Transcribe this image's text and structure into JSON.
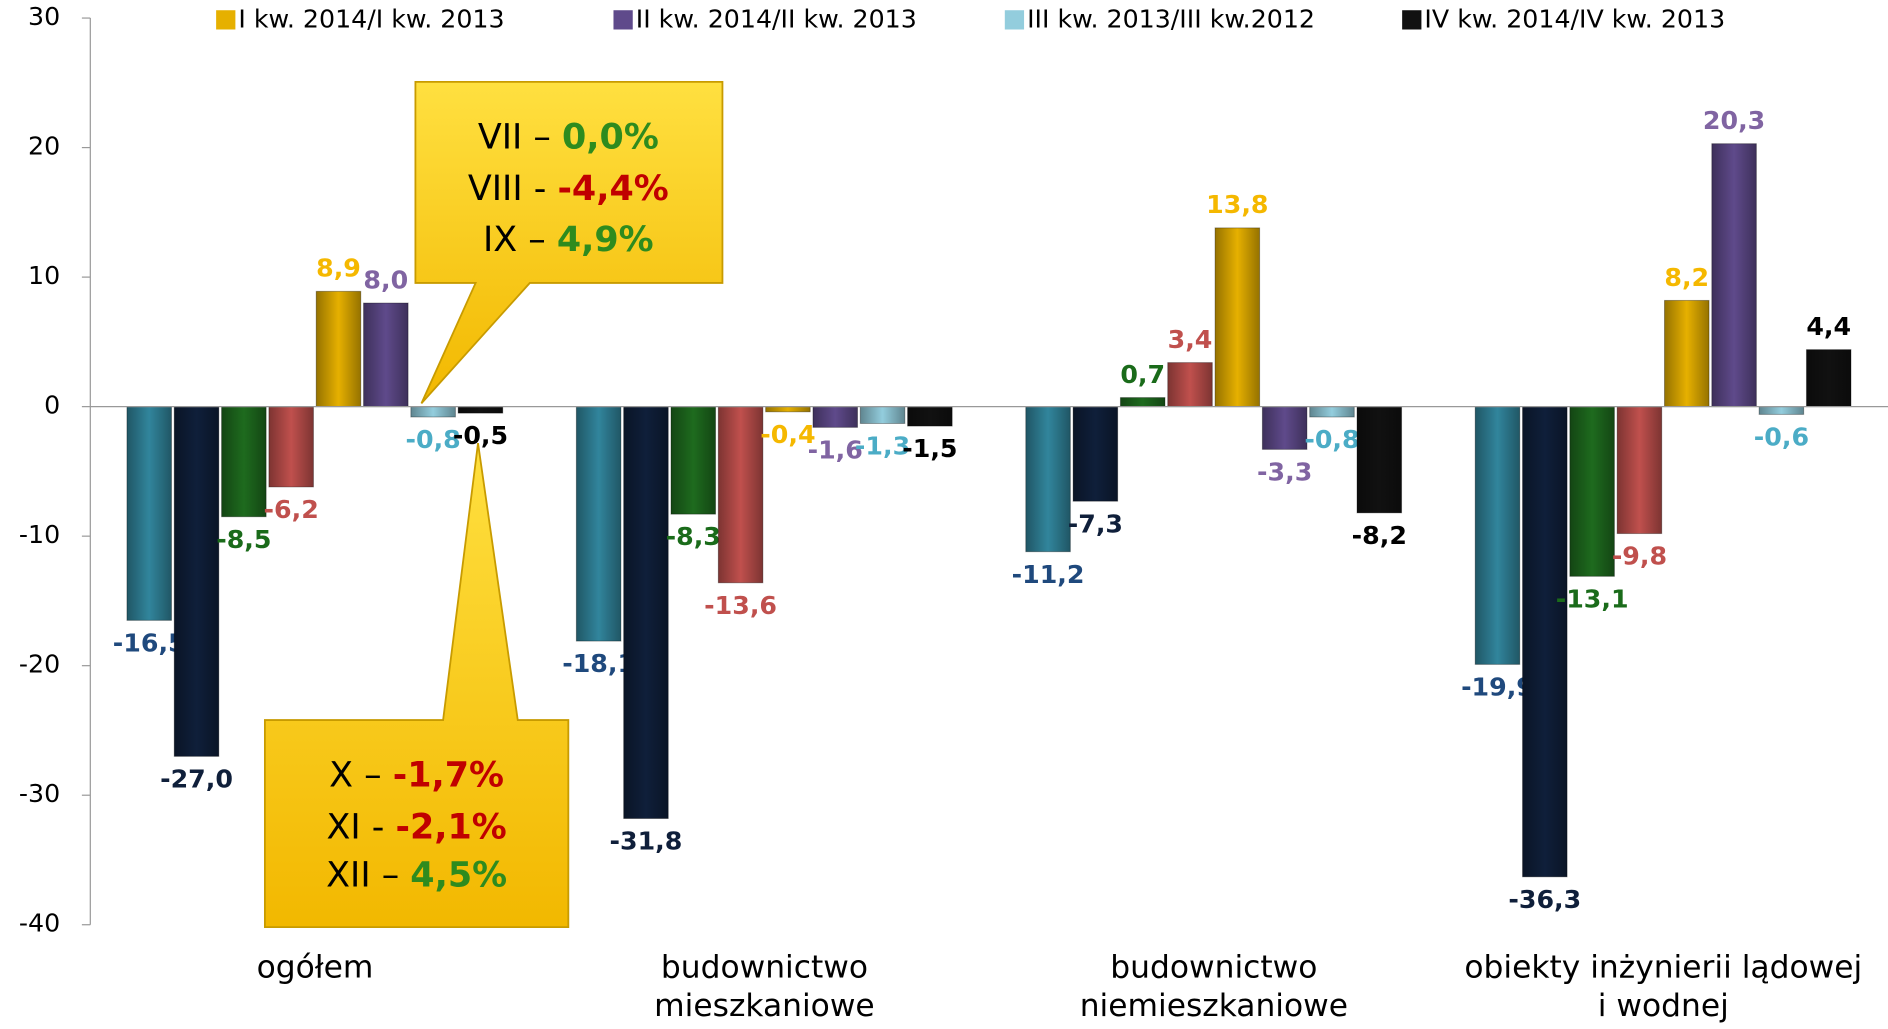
{
  "chart_data": {
    "type": "bar",
    "categories": [
      "ogółem",
      "budownictwo\nmieszkaniowe",
      "budownictwo\nniemieszkaniowe",
      "obiekty inżynierii lądowej\ni wodnej"
    ],
    "series": [
      {
        "color": "#31859c",
        "label_color": "#1f497d",
        "values": [
          -16.5,
          -18.1,
          -11.2,
          -19.9
        ],
        "value_labels": [
          "-16,5",
          "-18,1",
          "-11,2",
          "-19,9"
        ]
      },
      {
        "color": "#0f1f3a",
        "label_color": "#0f1f3a",
        "values": [
          -27.0,
          -31.8,
          -7.3,
          -36.3
        ],
        "value_labels": [
          "-27,0",
          "-31,8",
          "-7,3",
          "-36,3"
        ]
      },
      {
        "color": "#1e6b1e",
        "label_color": "#1a6b1a",
        "values": [
          -8.5,
          -8.3,
          0.7,
          -13.1
        ],
        "value_labels": [
          "-8,5",
          "-8,3",
          "0,7",
          "-13,1"
        ]
      },
      {
        "color": "#c0504d",
        "label_color": "#c0504d",
        "values": [
          -6.2,
          -13.6,
          3.4,
          -9.8
        ],
        "value_labels": [
          "-6,2",
          "-13,6",
          "3,4",
          "-9,8"
        ]
      },
      {
        "name": "I kw. 2014/I kw. 2013",
        "color": "#e6b000",
        "label_color": "#f5b800",
        "values": [
          8.9,
          -0.4,
          13.8,
          8.2
        ],
        "value_labels": [
          "8,9",
          "-0,4",
          "13,8",
          "8,2"
        ]
      },
      {
        "name": "II kw. 2014/II kw. 2013",
        "color": "#5f4a8b",
        "label_color": "#8064a2",
        "values": [
          8.0,
          -1.6,
          -3.3,
          20.3
        ],
        "value_labels": [
          "8,0",
          "-1,6",
          "-3,3",
          "20,3"
        ]
      },
      {
        "name": "III kw. 2013/III kw.2012",
        "color": "#93cddd",
        "label_color": "#4bacc6",
        "values": [
          -0.8,
          -1.3,
          -0.8,
          -0.6
        ],
        "value_labels": [
          "-0,8",
          "-1,3",
          "-0,8",
          "-0,6"
        ]
      },
      {
        "name": "IV kw. 2014/IV kw. 2013",
        "color": "#111111",
        "label_color": "#000000",
        "values": [
          -0.5,
          -1.5,
          -8.2,
          4.4
        ],
        "value_labels": [
          "-0,5",
          "-1,5",
          "-8,2",
          "4,4"
        ]
      }
    ],
    "ylim": [
      -40,
      30
    ],
    "yticks": [
      -40,
      -30,
      -20,
      -10,
      0,
      10,
      20,
      30
    ],
    "annotations": [
      {
        "lines": [
          {
            "parts": [
              "VII",
              "–",
              "0,0%"
            ],
            "color": "#2e8b1e"
          },
          {
            "parts": [
              "VIII",
              "-",
              "-4,4%"
            ],
            "color": "#c00000"
          },
          {
            "parts": [
              "IX",
              "–",
              "4,9%"
            ],
            "color": "#2e8b1e"
          }
        ]
      },
      {
        "lines": [
          {
            "parts": [
              "X",
              "–",
              "-1,7%"
            ],
            "color": "#c00000"
          },
          {
            "parts": [
              "XI",
              "-",
              "-2,1%"
            ],
            "color": "#c00000"
          },
          {
            "parts": [
              "XII",
              "–",
              "4,5%"
            ],
            "color": "#2e8b1e"
          }
        ]
      }
    ]
  }
}
